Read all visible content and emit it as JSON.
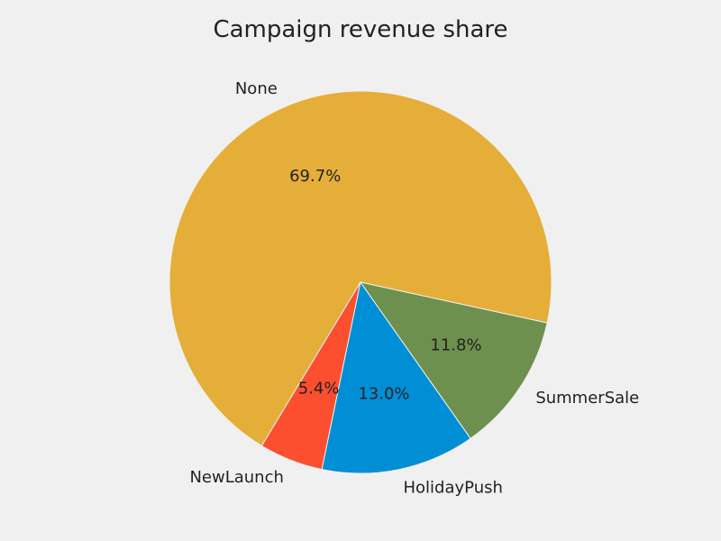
{
  "chart_data": {
    "type": "pie",
    "title": "Campaign revenue share",
    "slices": [
      {
        "label": "None",
        "value": 69.7,
        "value_label": "69.7%",
        "color": "#e5ae38"
      },
      {
        "label": "NewLaunch",
        "value": 5.4,
        "value_label": "5.4%",
        "color": "#fc4f30"
      },
      {
        "label": "HolidayPush",
        "value": 13.0,
        "value_label": "13.0%",
        "color": "#008fd5"
      },
      {
        "label": "SummerSale",
        "value": 11.8,
        "value_label": "11.8%",
        "color": "#6d904f"
      }
    ],
    "legend": "none"
  }
}
